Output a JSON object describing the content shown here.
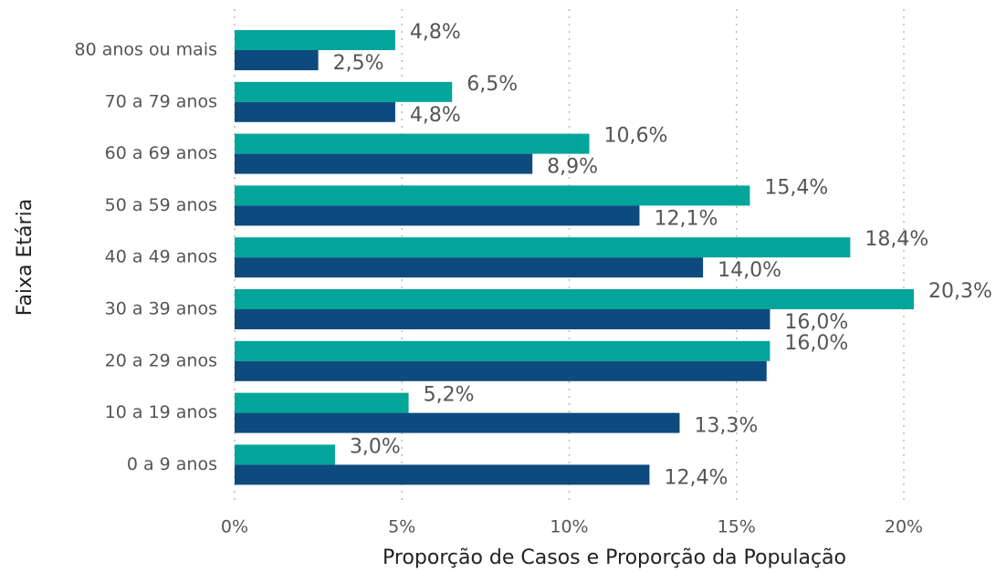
{
  "chart_data": {
    "type": "bar",
    "orientation": "horizontal",
    "xlabel": "Proporção de Casos e Proporção da População",
    "ylabel": "Faixa Etária",
    "categories": [
      "80 anos ou mais",
      "70 a 79 anos",
      "60 a 69 anos",
      "50 a 59 anos",
      "40 a 49 anos",
      "30 a 39 anos",
      "20 a 29 anos",
      "10 a 19 anos",
      "0 a 9 anos"
    ],
    "series": [
      {
        "color": "#01a59a",
        "values": [
          4.8,
          6.5,
          10.6,
          15.4,
          18.4,
          20.3,
          16.0,
          5.2,
          3.0
        ],
        "value_labels": [
          "4,8%",
          "6,5%",
          "10,6%",
          "15,4%",
          "18,4%",
          "20,3%",
          "16,0%",
          "5,2%",
          "3,0%"
        ]
      },
      {
        "color": "#0d4a7e",
        "values": [
          2.5,
          4.8,
          8.9,
          12.1,
          14.0,
          16.0,
          15.9,
          13.3,
          12.4
        ],
        "value_labels": [
          "2,5%",
          "4,8%",
          "8,9%",
          "12,1%",
          "14,0%",
          "16,0%",
          null,
          "13,3%",
          "12,4%"
        ]
      }
    ],
    "xlim": [
      0,
      22
    ],
    "xticks": [
      {
        "value": 0,
        "label": "0%"
      },
      {
        "value": 5,
        "label": "5%"
      },
      {
        "value": 10,
        "label": "10%"
      },
      {
        "value": 15,
        "label": "15%"
      },
      {
        "value": 20,
        "label": "20%"
      }
    ],
    "grid": true
  }
}
